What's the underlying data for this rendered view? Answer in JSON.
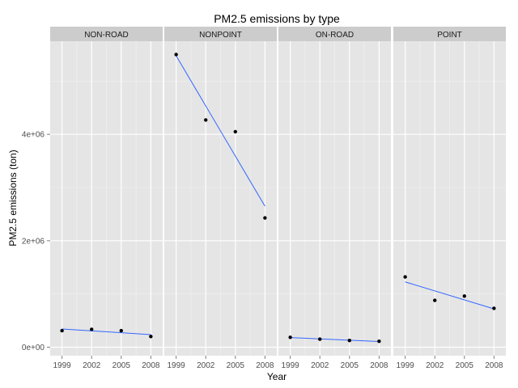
{
  "chart_data": {
    "type": "scatter",
    "title": "PM2.5 emissions by type",
    "xlabel": "Year",
    "ylabel": "PM2.5 emissions (ton)",
    "x_ticks": [
      "1999",
      "2002",
      "2005",
      "2008"
    ],
    "y_ticks": [
      "0e+00",
      "2e+06",
      "4e+06"
    ],
    "xlim": [
      1997.8,
      2009.2
    ],
    "ylim": [
      -160000,
      5750000
    ],
    "trend_line": "linear fit",
    "colors": {
      "panel_background": "#e5e5e5",
      "grid": "#ffffff",
      "strip_background": "#cccccc",
      "points": "#000000",
      "trend": "#3366ff"
    },
    "panels": [
      {
        "name": "NON-ROAD",
        "points": [
          [
            1999,
            310000
          ],
          [
            2002,
            335000
          ],
          [
            2005,
            310000
          ],
          [
            2008,
            200000
          ]
        ]
      },
      {
        "name": "NONPOINT",
        "points": [
          [
            1999,
            5500000
          ],
          [
            2002,
            4270000
          ],
          [
            2005,
            4050000
          ],
          [
            2008,
            2430000
          ]
        ]
      },
      {
        "name": "ON-ROAD",
        "points": [
          [
            1999,
            185000
          ],
          [
            2002,
            150000
          ],
          [
            2005,
            125000
          ],
          [
            2008,
            110000
          ]
        ]
      },
      {
        "name": "POINT",
        "points": [
          [
            1999,
            1320000
          ],
          [
            2002,
            880000
          ],
          [
            2005,
            960000
          ],
          [
            2008,
            730000
          ]
        ]
      }
    ]
  }
}
